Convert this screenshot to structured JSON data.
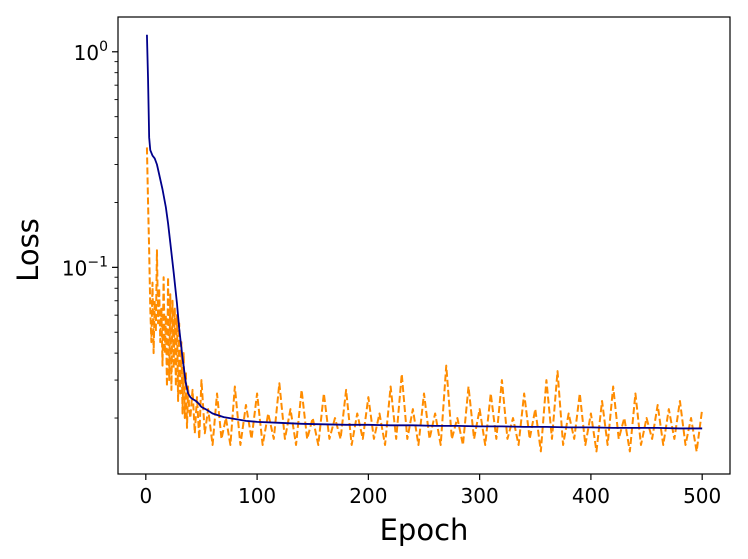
{
  "chart_data": {
    "type": "line",
    "title": "",
    "xlabel": "Epoch",
    "ylabel": "Loss",
    "yscale": "log",
    "xlim": [
      -25,
      525
    ],
    "ylim": [
      0.011,
      1.45
    ],
    "grid": false,
    "x_ticks": [
      {
        "value": 0,
        "label": "0"
      },
      {
        "value": 100,
        "label": "100"
      },
      {
        "value": 200,
        "label": "200"
      },
      {
        "value": 300,
        "label": "300"
      },
      {
        "value": 400,
        "label": "400"
      },
      {
        "value": 500,
        "label": "500"
      }
    ],
    "y_ticks": [
      {
        "value": 1,
        "base": "10",
        "exp": "0"
      },
      {
        "value": 0.1,
        "base": "10",
        "exp": "−1"
      }
    ],
    "series": [
      {
        "color": "#00008b",
        "style": "solid",
        "x": [
          1,
          2,
          3,
          4,
          6,
          8,
          10,
          12,
          15,
          18,
          20,
          22,
          25,
          28,
          30,
          33,
          36,
          38,
          40,
          42,
          45,
          48,
          50,
          55,
          60,
          70,
          80,
          90,
          100,
          120,
          140,
          160,
          180,
          200,
          220,
          240,
          260,
          280,
          300,
          320,
          340,
          360,
          380,
          400,
          420,
          440,
          460,
          480,
          500
        ],
        "y": [
          1.2,
          0.75,
          0.4,
          0.35,
          0.33,
          0.32,
          0.3,
          0.27,
          0.23,
          0.19,
          0.16,
          0.13,
          0.095,
          0.068,
          0.052,
          0.038,
          0.029,
          0.026,
          0.025,
          0.0245,
          0.024,
          0.0232,
          0.0225,
          0.0218,
          0.021,
          0.0202,
          0.0198,
          0.0194,
          0.0192,
          0.019,
          0.0188,
          0.0187,
          0.0186,
          0.0186,
          0.0185,
          0.0185,
          0.0184,
          0.0184,
          0.0183,
          0.0183,
          0.0182,
          0.0182,
          0.0181,
          0.0181,
          0.018,
          0.018,
          0.018,
          0.0179,
          0.0179
        ]
      },
      {
        "color": "#ff8c00",
        "style": "dashed",
        "x": [
          1,
          2,
          3,
          4,
          5,
          6,
          7,
          8,
          9,
          10,
          11,
          12,
          13,
          14,
          15,
          16,
          17,
          18,
          19,
          20,
          21,
          22,
          23,
          24,
          25,
          26,
          27,
          28,
          29,
          30,
          31,
          32,
          33,
          34,
          35,
          36,
          37,
          38,
          39,
          40,
          42,
          44,
          46,
          48,
          50,
          53,
          56,
          60,
          64,
          68,
          72,
          76,
          80,
          85,
          90,
          95,
          100,
          105,
          110,
          115,
          120,
          125,
          130,
          135,
          140,
          145,
          150,
          155,
          160,
          165,
          170,
          175,
          180,
          185,
          190,
          195,
          200,
          205,
          210,
          215,
          220,
          225,
          230,
          235,
          240,
          245,
          250,
          255,
          260,
          265,
          270,
          275,
          280,
          285,
          290,
          295,
          300,
          305,
          310,
          315,
          320,
          325,
          330,
          335,
          340,
          345,
          350,
          355,
          360,
          365,
          370,
          375,
          380,
          385,
          390,
          395,
          400,
          405,
          410,
          415,
          420,
          425,
          430,
          435,
          440,
          445,
          450,
          455,
          460,
          465,
          470,
          475,
          480,
          485,
          490,
          495,
          500
        ],
        "y": [
          0.36,
          0.2,
          0.12,
          0.065,
          0.045,
          0.085,
          0.04,
          0.07,
          0.05,
          0.12,
          0.055,
          0.08,
          0.045,
          0.065,
          0.035,
          0.09,
          0.04,
          0.06,
          0.028,
          0.09,
          0.03,
          0.075,
          0.027,
          0.07,
          0.034,
          0.065,
          0.028,
          0.06,
          0.024,
          0.055,
          0.026,
          0.045,
          0.021,
          0.04,
          0.02,
          0.033,
          0.018,
          0.028,
          0.022,
          0.02,
          0.027,
          0.017,
          0.025,
          0.016,
          0.03,
          0.017,
          0.022,
          0.015,
          0.026,
          0.016,
          0.02,
          0.015,
          0.028,
          0.015,
          0.023,
          0.016,
          0.026,
          0.015,
          0.021,
          0.016,
          0.029,
          0.016,
          0.022,
          0.015,
          0.027,
          0.016,
          0.02,
          0.015,
          0.026,
          0.016,
          0.02,
          0.016,
          0.027,
          0.015,
          0.021,
          0.016,
          0.025,
          0.016,
          0.021,
          0.015,
          0.028,
          0.016,
          0.032,
          0.016,
          0.022,
          0.015,
          0.026,
          0.016,
          0.021,
          0.015,
          0.035,
          0.016,
          0.02,
          0.015,
          0.028,
          0.016,
          0.022,
          0.015,
          0.026,
          0.016,
          0.03,
          0.016,
          0.02,
          0.015,
          0.026,
          0.016,
          0.022,
          0.014,
          0.03,
          0.016,
          0.033,
          0.015,
          0.021,
          0.016,
          0.026,
          0.015,
          0.021,
          0.014,
          0.024,
          0.015,
          0.028,
          0.016,
          0.02,
          0.014,
          0.026,
          0.015,
          0.02,
          0.016,
          0.023,
          0.015,
          0.022,
          0.016,
          0.024,
          0.015,
          0.02,
          0.014,
          0.022
        ]
      }
    ]
  }
}
